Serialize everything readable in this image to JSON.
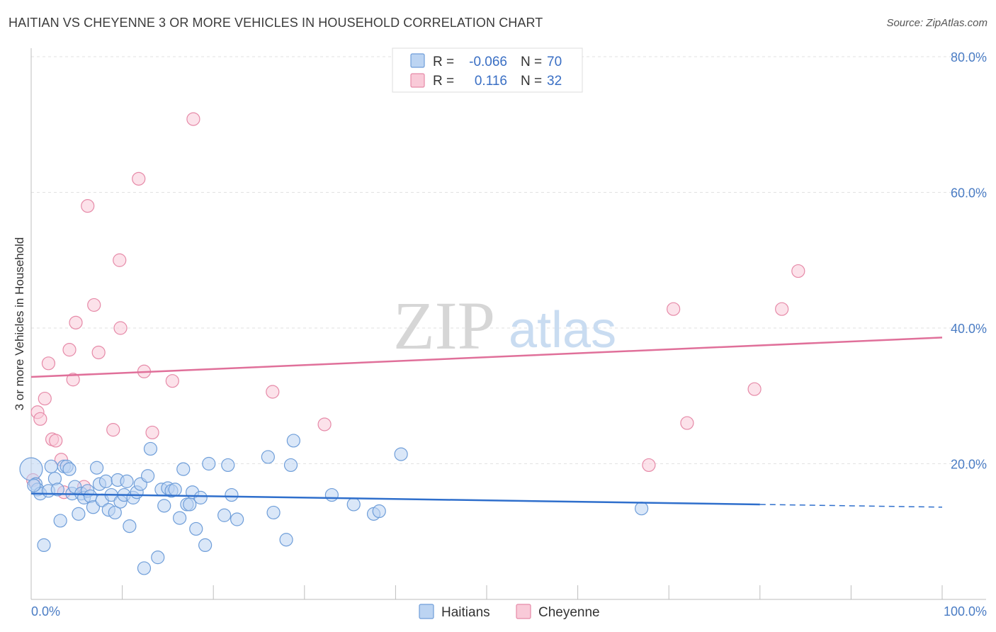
{
  "title": "HAITIAN VS CHEYENNE 3 OR MORE VEHICLES IN HOUSEHOLD CORRELATION CHART",
  "source": "Source: ZipAtlas.com",
  "watermark": {
    "zip": "ZIP",
    "atlas": "atlas"
  },
  "colors": {
    "haitians_fill": "#bcd4f2",
    "haitians_stroke": "#6f9ed9",
    "haitians_line": "#2f6fcc",
    "cheyenne_fill": "#f9cad8",
    "cheyenne_stroke": "#e68aa8",
    "cheyenne_line": "#e0709a"
  },
  "legend": {
    "r_label": "R =",
    "n_label": "N =",
    "rows": [
      {
        "series": "Haitians",
        "r": "-0.066",
        "n": "70"
      },
      {
        "series": "Cheyenne",
        "r": "0.116",
        "n": "32"
      }
    ]
  },
  "chart_data": {
    "type": "scatter",
    "title": "HAITIAN VS CHEYENNE 3 OR MORE VEHICLES IN HOUSEHOLD CORRELATION CHART",
    "xlabel": "",
    "ylabel": "3 or more Vehicles in Household",
    "xlim": [
      0,
      100
    ],
    "ylim": [
      0,
      80
    ],
    "x_ticks": [
      "0.0%",
      "100.0%"
    ],
    "y_ticks": [
      {
        "value": 20,
        "label": "20.0%"
      },
      {
        "value": 40,
        "label": "40.0%"
      },
      {
        "value": 60,
        "label": "60.0%"
      },
      {
        "value": 80,
        "label": "80.0%"
      }
    ],
    "series": [
      {
        "name": "Haitians",
        "trend": {
          "x": [
            0,
            80
          ],
          "y": [
            15.6,
            14.0
          ],
          "dashed_to": [
            100,
            13.6
          ]
        },
        "points": [
          [
            0.0,
            19.2,
            16
          ],
          [
            0.5,
            17.0,
            9
          ],
          [
            0.7,
            16.2,
            9
          ],
          [
            1.0,
            15.6,
            9
          ],
          [
            1.4,
            8.0,
            9
          ],
          [
            1.9,
            16.0,
            9
          ],
          [
            2.2,
            19.6,
            9
          ],
          [
            2.6,
            17.8,
            9
          ],
          [
            2.9,
            16.2,
            9
          ],
          [
            3.2,
            11.6,
            9
          ],
          [
            3.6,
            19.6,
            9
          ],
          [
            3.9,
            19.6,
            9
          ],
          [
            4.2,
            19.2,
            9
          ],
          [
            4.5,
            15.6,
            9
          ],
          [
            4.8,
            16.6,
            9
          ],
          [
            5.2,
            12.6,
            9
          ],
          [
            5.5,
            15.6,
            9
          ],
          [
            5.8,
            15.0,
            9
          ],
          [
            6.2,
            16.0,
            9
          ],
          [
            6.5,
            15.2,
            9
          ],
          [
            6.8,
            13.6,
            9
          ],
          [
            7.2,
            19.4,
            9
          ],
          [
            7.5,
            17.0,
            9
          ],
          [
            7.8,
            14.6,
            9
          ],
          [
            8.2,
            17.4,
            9
          ],
          [
            8.5,
            13.2,
            9
          ],
          [
            8.8,
            15.4,
            9
          ],
          [
            9.2,
            12.8,
            9
          ],
          [
            9.5,
            17.6,
            9
          ],
          [
            9.8,
            14.4,
            9
          ],
          [
            10.2,
            15.4,
            9
          ],
          [
            10.5,
            17.4,
            9
          ],
          [
            10.8,
            10.8,
            9
          ],
          [
            11.2,
            15.0,
            9
          ],
          [
            11.6,
            15.8,
            9
          ],
          [
            12.0,
            17.0,
            9
          ],
          [
            12.4,
            4.6,
            9
          ],
          [
            12.8,
            18.2,
            9
          ],
          [
            13.1,
            22.2,
            9
          ],
          [
            13.9,
            6.2,
            9
          ],
          [
            14.3,
            16.2,
            9
          ],
          [
            14.6,
            13.8,
            9
          ],
          [
            15.0,
            16.4,
            9
          ],
          [
            15.4,
            16.0,
            9
          ],
          [
            15.8,
            16.2,
            9
          ],
          [
            16.3,
            12.0,
            9
          ],
          [
            16.7,
            19.2,
            9
          ],
          [
            17.1,
            14.0,
            9
          ],
          [
            17.4,
            14.0,
            9
          ],
          [
            17.7,
            15.8,
            9
          ],
          [
            18.1,
            10.4,
            9
          ],
          [
            18.6,
            15.0,
            9
          ],
          [
            19.1,
            8.0,
            9
          ],
          [
            19.5,
            20.0,
            9
          ],
          [
            21.2,
            12.4,
            9
          ],
          [
            21.6,
            19.8,
            9
          ],
          [
            22.0,
            15.4,
            9
          ],
          [
            22.6,
            11.8,
            9
          ],
          [
            26.0,
            21.0,
            9
          ],
          [
            26.6,
            12.8,
            9
          ],
          [
            28.0,
            8.8,
            9
          ],
          [
            28.5,
            19.8,
            9
          ],
          [
            28.8,
            23.4,
            9
          ],
          [
            33.0,
            15.4,
            9
          ],
          [
            35.4,
            14.0,
            9
          ],
          [
            37.6,
            12.6,
            9
          ],
          [
            38.2,
            13.0,
            9
          ],
          [
            40.6,
            21.4,
            9
          ],
          [
            67.0,
            13.4,
            9
          ],
          [
            0.3,
            16.8,
            9
          ]
        ]
      },
      {
        "name": "Cheyenne",
        "trend": {
          "x": [
            0,
            100
          ],
          "y": [
            32.8,
            38.6
          ]
        },
        "points": [
          [
            0.2,
            17.6,
            9
          ],
          [
            0.7,
            27.6,
            9
          ],
          [
            1.0,
            26.6,
            9
          ],
          [
            1.5,
            29.6,
            9
          ],
          [
            1.9,
            34.8,
            9
          ],
          [
            2.3,
            23.6,
            9
          ],
          [
            2.7,
            23.4,
            9
          ],
          [
            3.3,
            20.6,
            9
          ],
          [
            3.6,
            15.8,
            9
          ],
          [
            4.2,
            36.8,
            9
          ],
          [
            4.6,
            32.4,
            9
          ],
          [
            4.9,
            40.8,
            9
          ],
          [
            5.8,
            16.6,
            9
          ],
          [
            6.2,
            58.0,
            9
          ],
          [
            6.9,
            43.4,
            9
          ],
          [
            7.4,
            36.4,
            9
          ],
          [
            9.0,
            25.0,
            9
          ],
          [
            9.7,
            50.0,
            9
          ],
          [
            9.8,
            40.0,
            9
          ],
          [
            11.8,
            62.0,
            9
          ],
          [
            12.4,
            33.6,
            9
          ],
          [
            13.3,
            24.6,
            9
          ],
          [
            15.5,
            32.2,
            9
          ],
          [
            17.8,
            70.8,
            9
          ],
          [
            26.5,
            30.6,
            9
          ],
          [
            32.2,
            25.8,
            9
          ],
          [
            67.8,
            19.8,
            9
          ],
          [
            70.5,
            42.8,
            9
          ],
          [
            72.0,
            26.0,
            9
          ],
          [
            79.4,
            31.0,
            9
          ],
          [
            82.4,
            42.8,
            9
          ],
          [
            84.2,
            48.4,
            9
          ]
        ]
      }
    ]
  }
}
